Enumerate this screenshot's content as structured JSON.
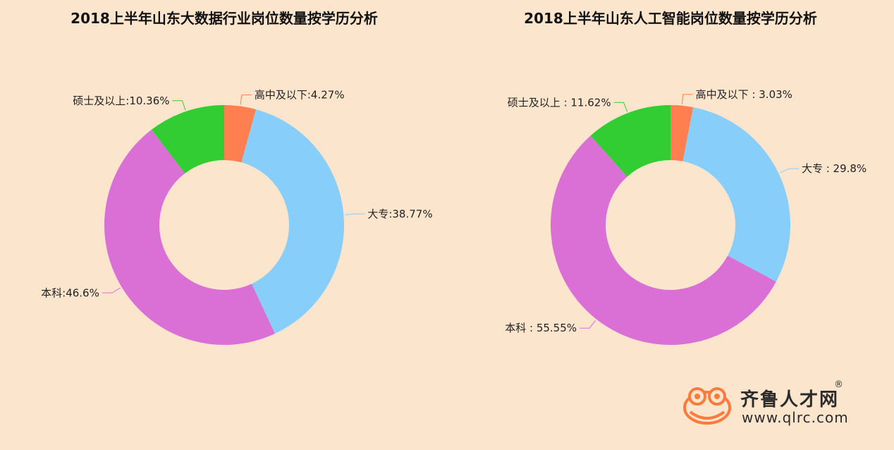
{
  "charts": [
    {
      "title": "2018上半年山东大数据行业岗位数量按学历分析",
      "chart_data": {
        "type": "pie",
        "donut": true,
        "title": "2018上半年山东大数据行业岗位数量按学历分析",
        "slices": [
          {
            "name": "高中及以下",
            "value": 4.27,
            "label": "高中及以下:4.27%",
            "color": "#ff7f50"
          },
          {
            "name": "大专",
            "value": 38.77,
            "label": "大专:38.77%",
            "color": "#87cefa"
          },
          {
            "name": "本科",
            "value": 46.6,
            "label": "本科:46.6%",
            "color": "#da70d6"
          },
          {
            "name": "硕士及以上",
            "value": 10.36,
            "label": "硕士及以上:10.36%",
            "color": "#32cd32"
          }
        ]
      }
    },
    {
      "title": "2018上半年山东人工智能岗位数量按学历分析",
      "chart_data": {
        "type": "pie",
        "donut": true,
        "title": "2018上半年山东人工智能岗位数量按学历分析",
        "slices": [
          {
            "name": "高中及以下",
            "value": 3.03,
            "label": "高中及以下 : 3.03%",
            "color": "#ff7f50"
          },
          {
            "name": "大专",
            "value": 29.8,
            "label": "大专 : 29.8%",
            "color": "#87cefa"
          },
          {
            "name": "本科",
            "value": 55.55,
            "label": "本科 : 55.55%",
            "color": "#da70d6"
          },
          {
            "name": "硕士及以上",
            "value": 11.62,
            "label": "硕士及以上 : 11.62%",
            "color": "#32cd32"
          }
        ]
      }
    }
  ],
  "brand": {
    "name": "齐鲁人才网",
    "url": "www.qlrc.com",
    "registered": "®",
    "color": "#ff7a3c"
  }
}
